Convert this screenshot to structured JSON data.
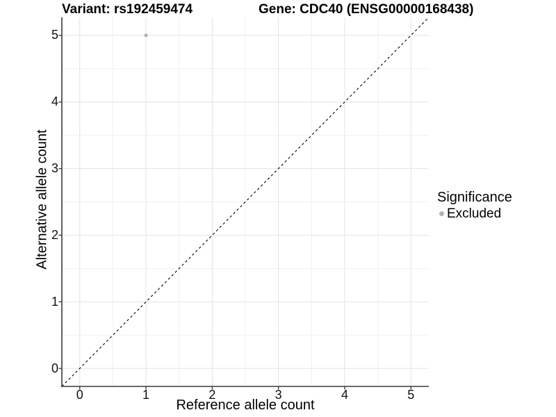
{
  "title": {
    "variant": "Variant: rs192459474",
    "gene": "Gene: CDC40 (ENSG00000168438)"
  },
  "x_axis": {
    "label": "Reference allele count",
    "tick_labels": [
      "0",
      "1",
      "2",
      "3",
      "4",
      "5"
    ]
  },
  "y_axis": {
    "label": "Alternative allele count",
    "tick_labels": [
      "0",
      "1",
      "2",
      "3",
      "4",
      "5"
    ]
  },
  "legend": {
    "title": "Significance",
    "items": [
      {
        "label": "Excluded",
        "marker": "circle-icon",
        "marker_color": "#b3b3b3"
      }
    ]
  },
  "colors": {
    "background": "#ffffff",
    "grid_major": "#e2e2e2",
    "grid_minor": "#f0f0f0",
    "axis_line": "#383838",
    "tick_mark": "#333333",
    "dashed_line": "#000000",
    "point": "#b3b3b3",
    "text": "#000000"
  },
  "chart_data": {
    "type": "scatter",
    "title": "Variant: rs192459474    Gene: CDC40 (ENSG00000168438)",
    "xlabel": "Reference allele count",
    "ylabel": "Alternative allele count",
    "xlim": [
      -0.27,
      5.27
    ],
    "ylim": [
      -0.27,
      5.27
    ],
    "x_ticks": [
      0,
      1,
      2,
      3,
      4,
      5
    ],
    "y_ticks": [
      0,
      1,
      2,
      3,
      4,
      5
    ],
    "grid": "on",
    "minor_grid": "on",
    "legend_position": "right",
    "legend_title": "Significance",
    "series": [
      {
        "name": "Excluded",
        "color": "#b3b3b3",
        "points": [
          [
            1,
            5
          ]
        ]
      }
    ],
    "reference_line": {
      "style": "dashed",
      "x1": -0.27,
      "y1": -0.27,
      "x2": 5.27,
      "y2": 5.27
    }
  }
}
